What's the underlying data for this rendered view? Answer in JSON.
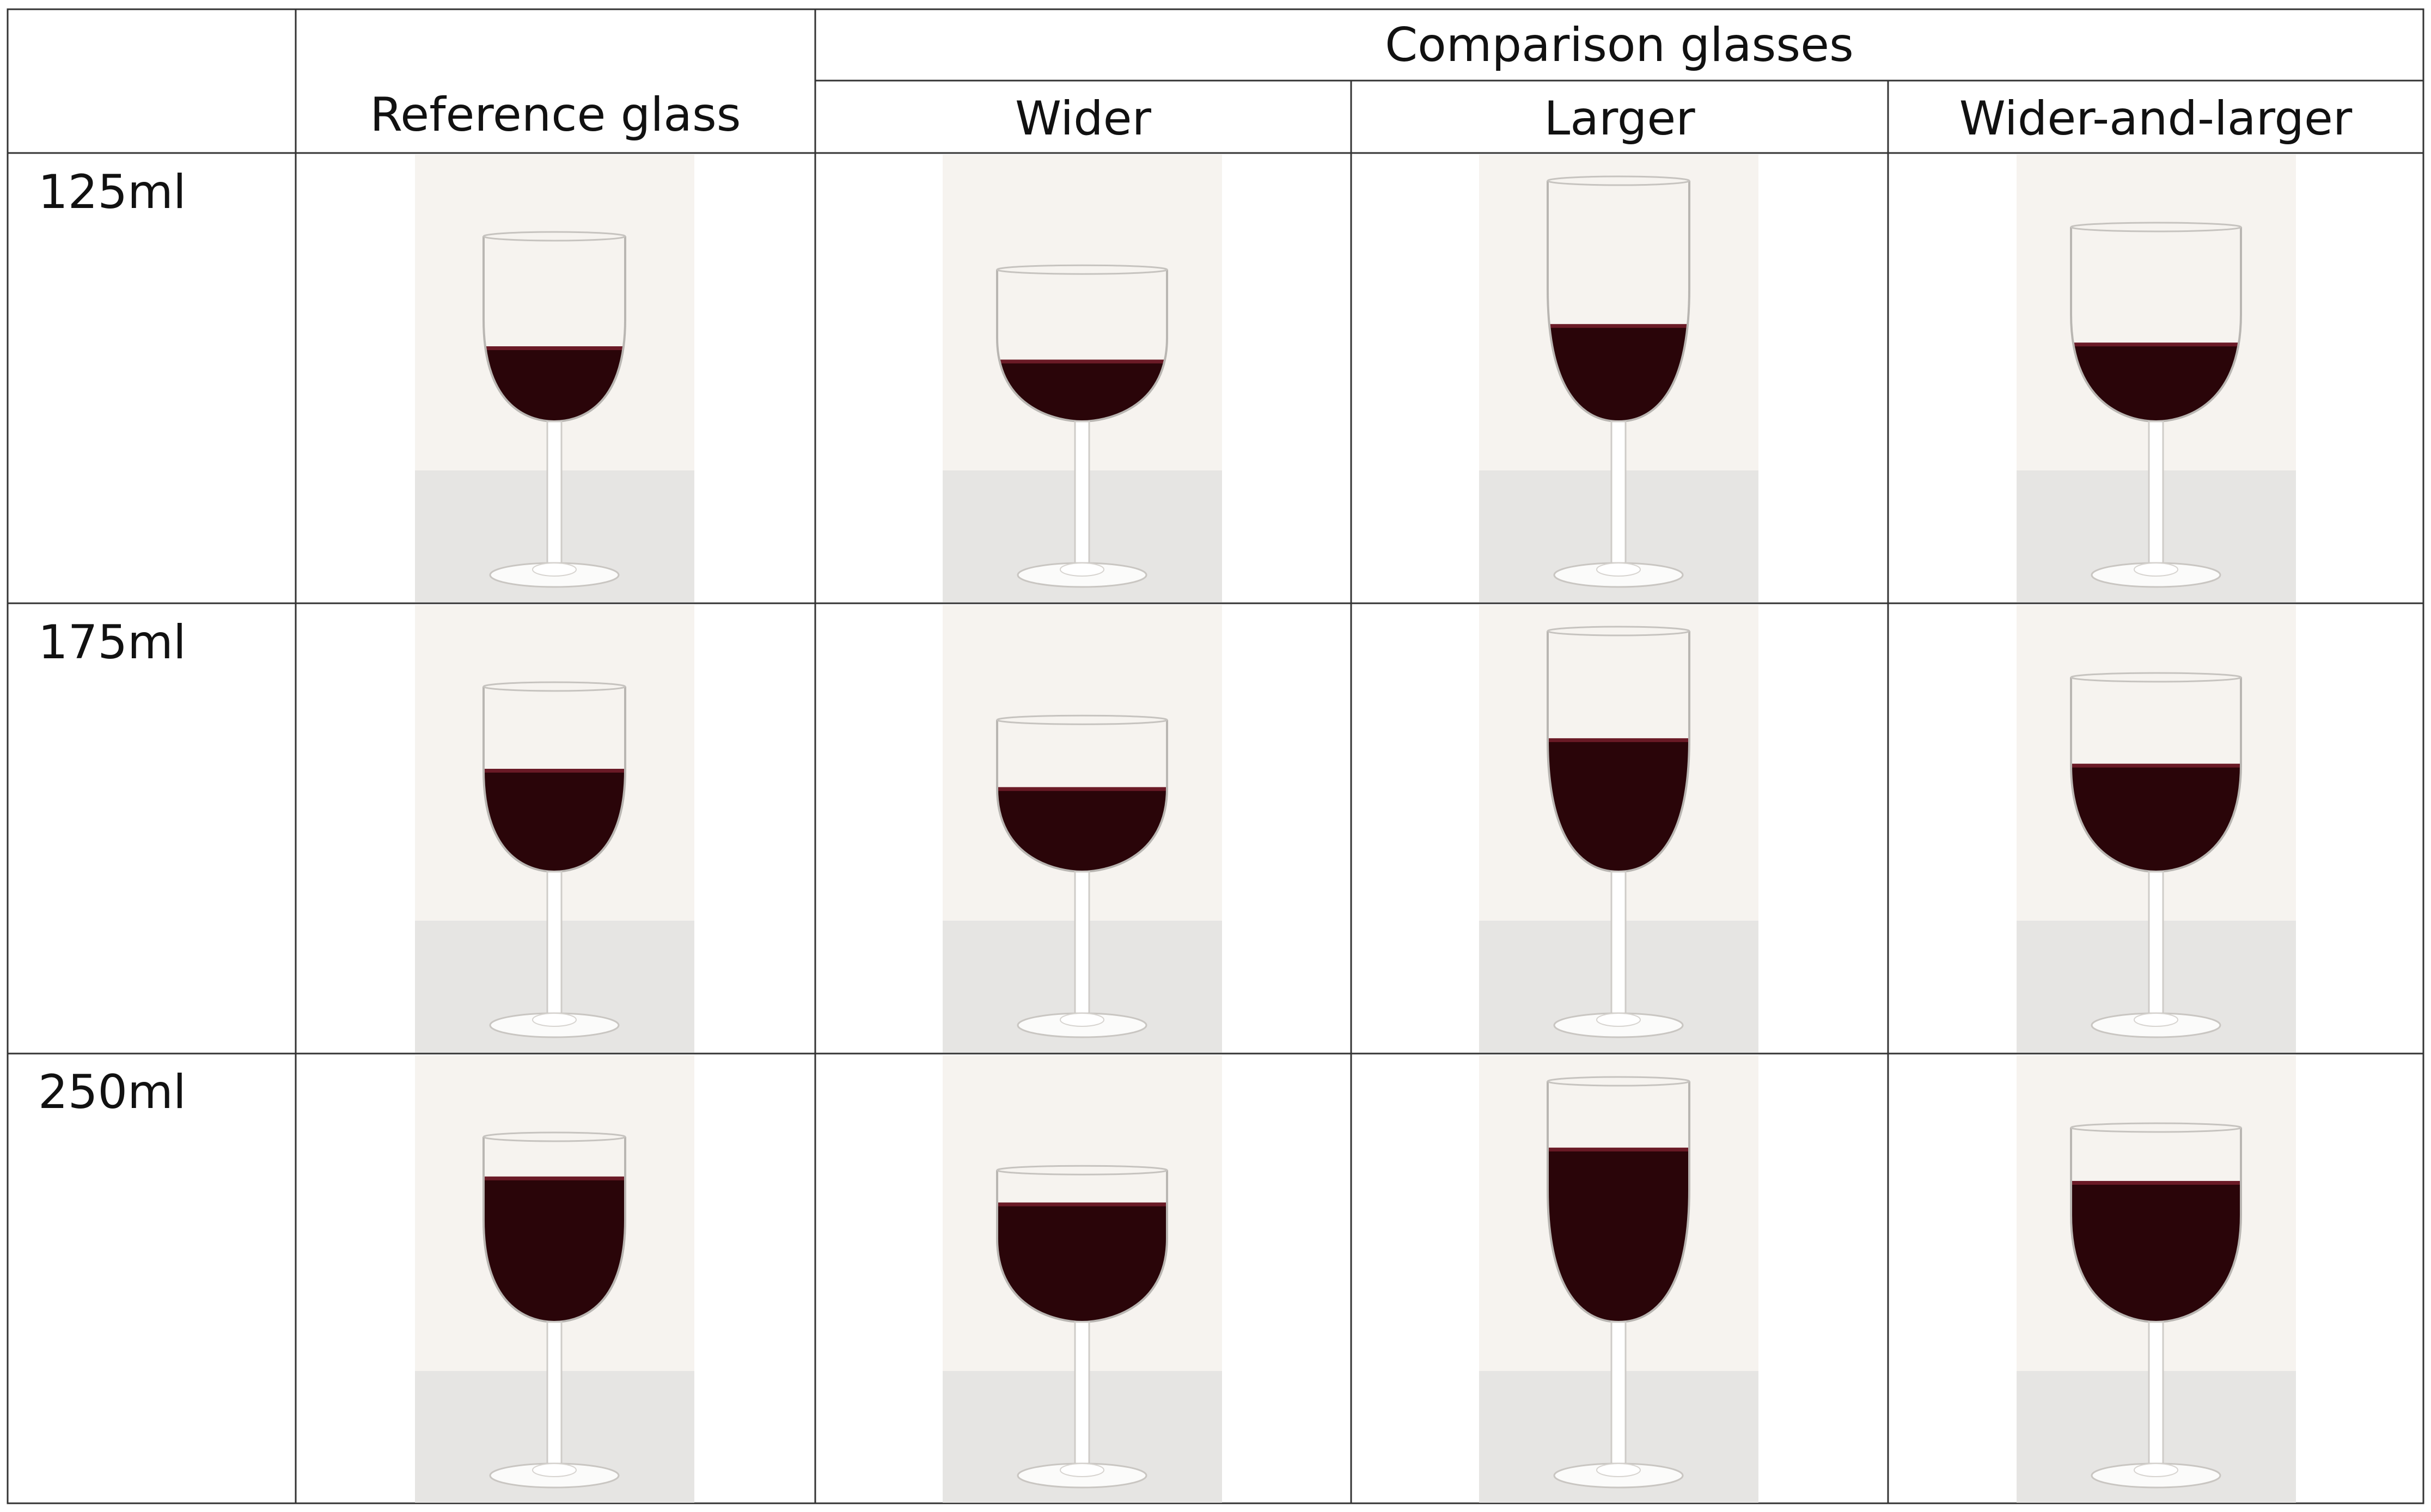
{
  "table": {
    "group_header": "Comparison glasses",
    "reference_header": "Reference glass",
    "comparison_headers": [
      "Wider",
      "Larger",
      "Wider-and-larger"
    ],
    "row_labels": [
      "125ml",
      "175ml",
      "250ml"
    ]
  },
  "glasses": {
    "reference": {
      "bowl_width": 1.0,
      "bowl_height": 1.0
    },
    "wider": {
      "bowl_width": 1.2,
      "bowl_height": 0.82
    },
    "larger": {
      "bowl_width": 1.0,
      "bowl_height": 1.3
    },
    "wider-and-larger": {
      "bowl_width": 1.2,
      "bowl_height": 1.05
    }
  },
  "colors": {
    "wine": "#2a0509",
    "wine_surface": "#6a1a26",
    "backdrop": "#f6f3ef",
    "table_surface": "#e6e5e3",
    "grid_line": "#333333"
  }
}
